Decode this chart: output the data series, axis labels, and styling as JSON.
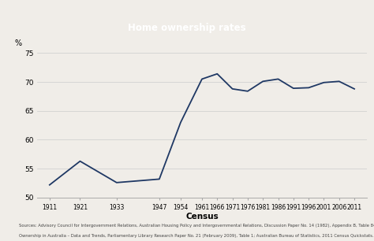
{
  "title": "Home ownership rates",
  "xlabel": "Census",
  "ylabel": "%",
  "years": [
    1911,
    1921,
    1933,
    1947,
    1954,
    1961,
    1966,
    1971,
    1976,
    1981,
    1986,
    1991,
    1996,
    2001,
    2006,
    2011
  ],
  "values": [
    52.2,
    56.3,
    52.6,
    53.2,
    63.0,
    70.5,
    71.4,
    68.8,
    68.4,
    70.1,
    70.5,
    68.9,
    69.0,
    69.9,
    70.1,
    68.8
  ],
  "line_color": "#1f3864",
  "title_bg_color": "#1f3864",
  "title_text_color": "#ffffff",
  "ylim": [
    50,
    75
  ],
  "yticks": [
    50,
    55,
    60,
    65,
    70,
    75
  ],
  "background_color": "#f0ede8",
  "source_line1": "Sources: Advisory Council for Intergovernment Relations, Australian Housing Policy and Intergovernmental Relations, Discussion Paper No. 14 (1982), Appendix B, Table 84; Tony Kryger, Home",
  "source_line2": "Ownership in Australia – Data and Trends, Parliamentary Library Research Paper No. 21 (February 2009), Table 1; Australian Bureau of Statistics, 2011 Census Quickstats."
}
